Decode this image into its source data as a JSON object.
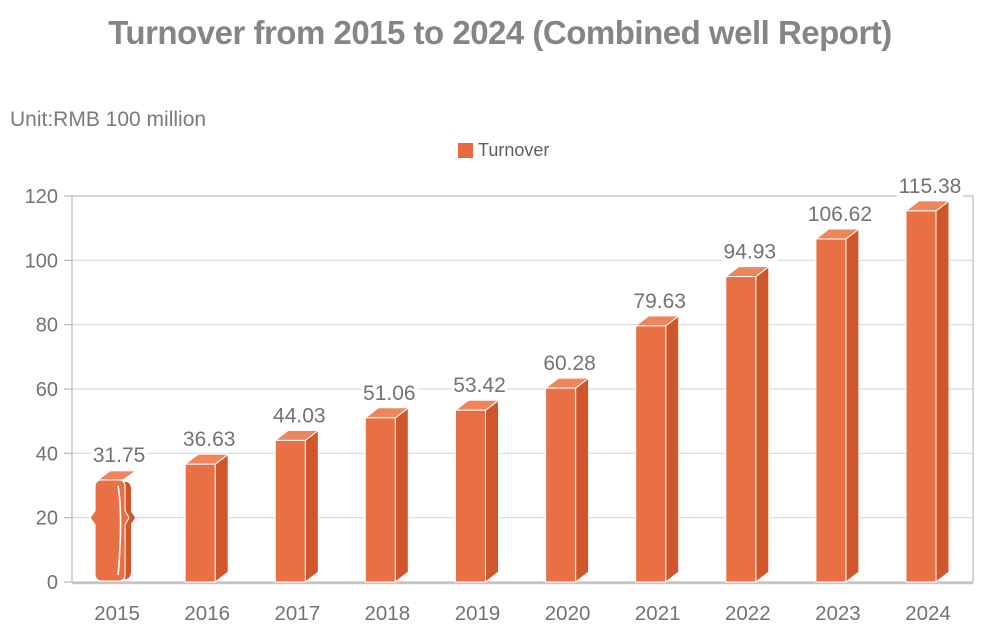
{
  "colors": {
    "bar_front": "#e97045",
    "bar_side": "#d0572c",
    "bar_top": "#ee855b",
    "legend_swatch": "#e8693e",
    "title_text": "#858585",
    "label_text": "#737373",
    "legend_text": "#5f5f5f",
    "gridline": "#d9d9d9",
    "axis_border": "#c5c5c5",
    "tick": "#b9b9b9",
    "value_label_bg": "#ffffff",
    "background": "#ffffff"
  },
  "chart_data": {
    "type": "bar",
    "title": "Turnover from 2015 to 2024 (Combined well Report)",
    "unit_label": "Unit:RMB 100 million",
    "categories": [
      "2015",
      "2016",
      "2017",
      "2018",
      "2019",
      "2020",
      "2021",
      "2022",
      "2023",
      "2024"
    ],
    "series": [
      {
        "name": "Turnover",
        "values": [
          31.75,
          36.63,
          44.03,
          51.06,
          53.42,
          60.28,
          79.63,
          94.93,
          106.62,
          115.38
        ]
      }
    ],
    "xlabel": "",
    "ylabel": "",
    "ylim": [
      0,
      120
    ],
    "yticks": [
      0,
      20,
      40,
      60,
      80,
      100,
      120
    ],
    "grid": true,
    "legend_position": "top-center",
    "value_labels_shown": true,
    "bar_style": "3d"
  }
}
